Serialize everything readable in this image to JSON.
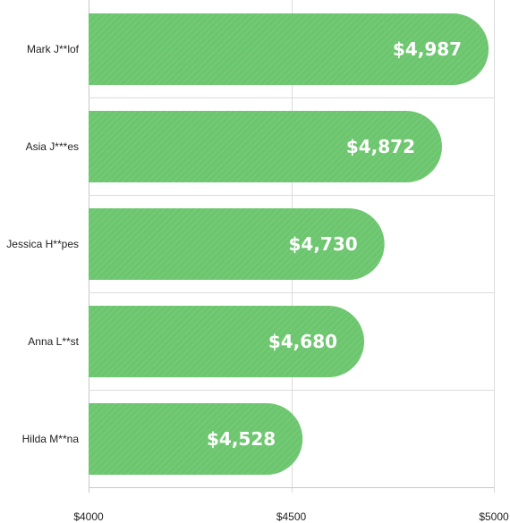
{
  "chart_data": {
    "type": "bar",
    "orientation": "horizontal",
    "categories": [
      "Mark J**lof",
      "Asia J***es",
      "Jessica H**pes",
      "Anna L**st",
      "Hilda M**na"
    ],
    "values": [
      4987,
      4872,
      4730,
      4680,
      4528
    ],
    "data_labels": [
      "$4,987",
      "$4,872",
      "$4,730",
      "$4,680",
      "$4,528"
    ],
    "xlim": [
      4000,
      5000
    ],
    "x_ticks": [
      4000,
      4500,
      5000
    ],
    "x_tick_labels": [
      "$4000",
      "$4500",
      "$5000"
    ],
    "grid": true,
    "bar_color": "#6cc66e",
    "title": "",
    "xlabel": "",
    "ylabel": ""
  }
}
